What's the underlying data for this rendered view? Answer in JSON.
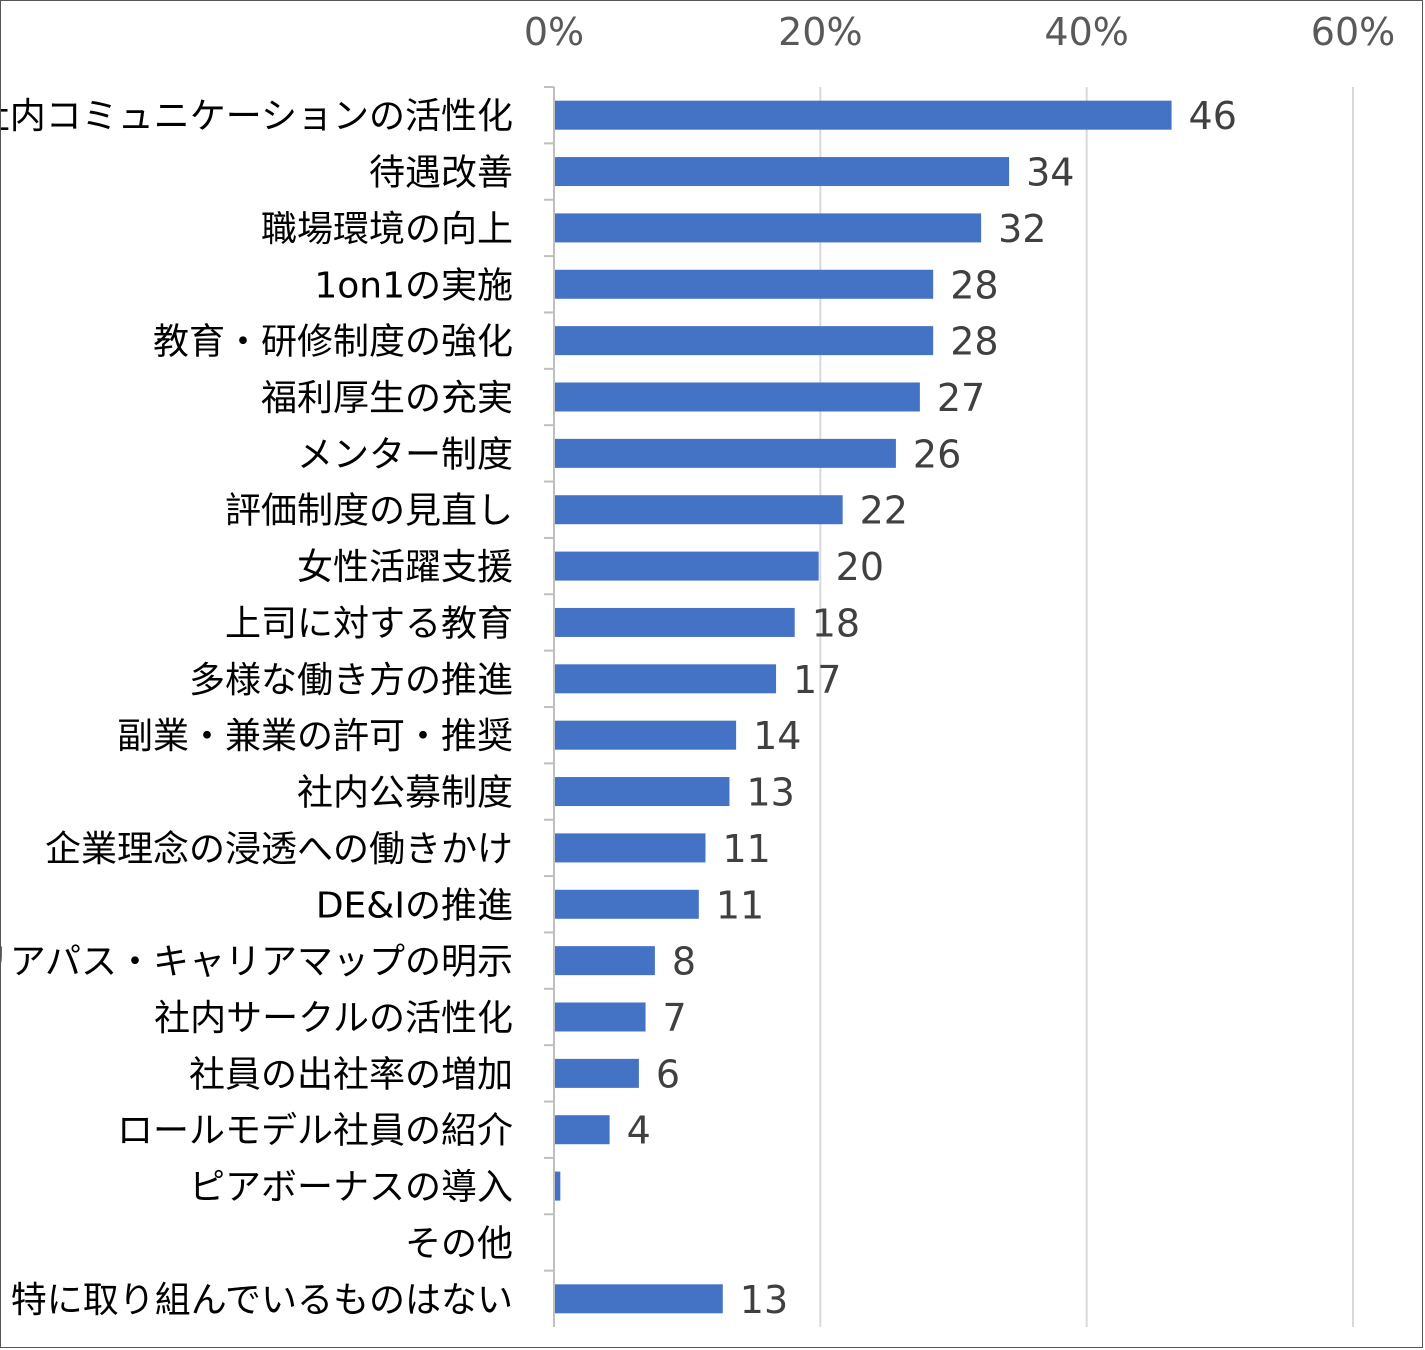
{
  "chart_data": {
    "type": "bar",
    "orientation": "horizontal",
    "title": "",
    "xlabel": "",
    "ylabel": "",
    "xlim": [
      0,
      60
    ],
    "x_ticks": [
      "0%",
      "20%",
      "40%",
      "60%"
    ],
    "x_tick_values": [
      0,
      20,
      40,
      60
    ],
    "axis_position": "top",
    "grid": true,
    "legend": "none",
    "bar_color": "#4472c4",
    "categories": [
      "社内コミュニケーションの活性化",
      "待遇改善",
      "職場環境の向上",
      "1on1の実施",
      "教育・研修制度の強化",
      "福利厚生の充実",
      "メンター制度",
      "評価制度の見直し",
      "女性活躍支援",
      "上司に対する教育",
      "多様な働き方の推進",
      "副業・兼業の許可・推奨",
      "社内公募制度",
      "企業理念の浸透への働きかけ",
      "DE&Iの推進",
      "キャリアパス・キャリアマップの明示",
      "社内サークルの活性化",
      "社員の出社率の増加",
      "ロールモデル社員の紹介",
      "ピアボーナスの導入",
      "その他",
      "特に取り組んでいるものはない"
    ],
    "values": [
      46.3,
      34.1,
      32.0,
      28.4,
      28.4,
      27.4,
      25.6,
      21.6,
      19.8,
      18.0,
      16.6,
      13.6,
      13.1,
      11.3,
      10.8,
      7.5,
      6.8,
      6.3,
      4.1,
      0.4,
      0,
      12.6
    ],
    "labels": [
      "46",
      "34",
      "32",
      "28",
      "28",
      "27",
      "26",
      "22",
      "20",
      "18",
      "17",
      "14",
      "13",
      "11",
      "11",
      "8",
      "7",
      "6",
      "4",
      "",
      "",
      "13"
    ]
  }
}
